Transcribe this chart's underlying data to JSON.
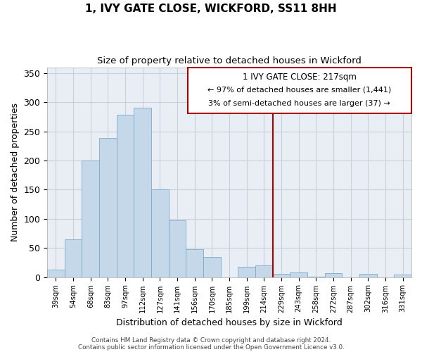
{
  "title": "1, IVY GATE CLOSE, WICKFORD, SS11 8HH",
  "subtitle": "Size of property relative to detached houses in Wickford",
  "xlabel": "Distribution of detached houses by size in Wickford",
  "ylabel": "Number of detached properties",
  "bar_labels": [
    "39sqm",
    "54sqm",
    "68sqm",
    "83sqm",
    "97sqm",
    "112sqm",
    "127sqm",
    "141sqm",
    "156sqm",
    "170sqm",
    "185sqm",
    "199sqm",
    "214sqm",
    "229sqm",
    "243sqm",
    "258sqm",
    "272sqm",
    "287sqm",
    "302sqm",
    "316sqm",
    "331sqm"
  ],
  "bar_values": [
    13,
    65,
    200,
    239,
    278,
    291,
    150,
    97,
    48,
    35,
    0,
    18,
    20,
    5,
    8,
    1,
    7,
    0,
    5,
    0,
    4
  ],
  "bar_color": "#c5d8ea",
  "bar_edge_color": "#7aaac8",
  "vline_x_index": 13,
  "vline_color": "#aa0000",
  "ylim": [
    0,
    360
  ],
  "yticks": [
    0,
    50,
    100,
    150,
    200,
    250,
    300,
    350
  ],
  "annotation_title": "1 IVY GATE CLOSE: 217sqm",
  "annotation_line1": "← 97% of detached houses are smaller (1,441)",
  "annotation_line2": "3% of semi-detached houses are larger (37) →",
  "annotation_box_facecolor": "#ffffff",
  "annotation_border_color": "#aa0000",
  "footer_line1": "Contains HM Land Registry data © Crown copyright and database right 2024.",
  "footer_line2": "Contains public sector information licensed under the Open Government Licence v3.0.",
  "background_color": "#ffffff",
  "grid_color": "#c8d0d8",
  "grid_bg_color": "#e8eef4"
}
